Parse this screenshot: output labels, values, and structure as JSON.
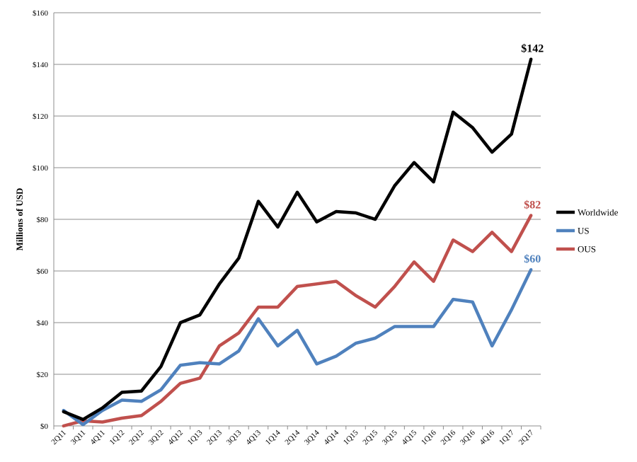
{
  "chart_data": {
    "type": "line",
    "title": "",
    "xlabel": "",
    "ylabel": "Millions of USD",
    "ylim": [
      0,
      160
    ],
    "y_ticks": [
      0,
      20,
      40,
      60,
      80,
      100,
      120,
      140,
      160
    ],
    "y_tick_labels": [
      "$0",
      "$20",
      "$40",
      "$60",
      "$80",
      "$100",
      "$120",
      "$140",
      "$160"
    ],
    "grid": "horizontal",
    "legend_position": "right",
    "categories": [
      "2Q11",
      "3Q11",
      "4Q11",
      "1Q12",
      "2Q12",
      "3Q12",
      "4Q12",
      "1Q13",
      "2Q13",
      "3Q13",
      "4Q13",
      "1Q14",
      "2Q14",
      "3Q14",
      "4Q14",
      "1Q15",
      "2Q15",
      "3Q15",
      "4Q15",
      "1Q16",
      "2Q16",
      "3Q16",
      "4Q16",
      "1Q17",
      "2Q17"
    ],
    "series": [
      {
        "name": "Worldwide",
        "color": "#000000",
        "values": [
          5.5,
          2.5,
          7,
          13,
          13.5,
          23,
          40,
          43,
          55,
          65,
          87,
          77,
          90.5,
          79,
          83,
          82.5,
          80,
          93,
          102,
          94.5,
          121.5,
          115.5,
          106,
          113,
          142
        ],
        "end_label": "$142"
      },
      {
        "name": "US",
        "color": "#4f81bd",
        "values": [
          6,
          0.5,
          6,
          10,
          9.5,
          14,
          23.5,
          24.5,
          24,
          29,
          41.5,
          31,
          37,
          24,
          27,
          32,
          34,
          38.5,
          38.5,
          38.5,
          49,
          48,
          31,
          45,
          60.5
        ],
        "end_label": "$60"
      },
      {
        "name": "OUS",
        "color": "#c0504d",
        "values": [
          0,
          2,
          1.5,
          3,
          4,
          9.5,
          16.5,
          18.5,
          31,
          36,
          46,
          46,
          54,
          55,
          56,
          50.5,
          46,
          54,
          63.5,
          56,
          72,
          67.5,
          75,
          67.5,
          81.5
        ],
        "end_label": "$82"
      }
    ]
  }
}
